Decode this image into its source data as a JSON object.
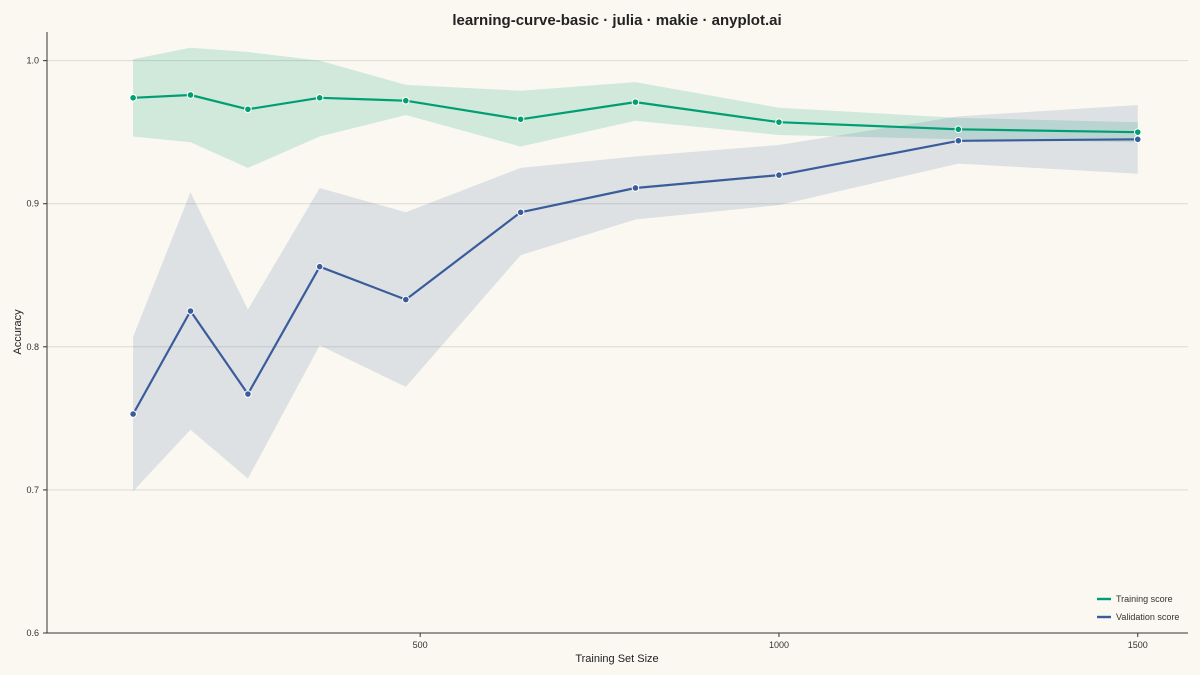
{
  "chart_data": {
    "type": "line",
    "title": "learning-curve-basic · julia · makie · anyplot.ai",
    "xlabel": "Training Set Size",
    "ylabel": "Accuracy",
    "xlim": [
      -20,
      1570
    ],
    "ylim": [
      0.6,
      1.02
    ],
    "xticks": [
      500,
      1000,
      1500
    ],
    "yticks": [
      0.6,
      0.7,
      0.8,
      0.9,
      1.0
    ],
    "xtick_labels": [
      "500",
      "1000",
      "1500"
    ],
    "ytick_labels": [
      "0.6",
      "0.7",
      "0.8",
      "0.9",
      "1.0"
    ],
    "grid": "horizontal",
    "legend_position": "bottom-right",
    "x": [
      100,
      180,
      260,
      360,
      480,
      640,
      800,
      1000,
      1250,
      1500
    ],
    "series": [
      {
        "name": "Training score",
        "color": "#009E73",
        "values": [
          0.974,
          0.976,
          0.966,
          0.974,
          0.972,
          0.959,
          0.971,
          0.957,
          0.952,
          0.95
        ],
        "upper": [
          1.001,
          1.009,
          1.006,
          1.0,
          0.983,
          0.979,
          0.985,
          0.967,
          0.96,
          0.957
        ],
        "lower": [
          0.947,
          0.943,
          0.925,
          0.947,
          0.962,
          0.94,
          0.958,
          0.948,
          0.945,
          0.943
        ]
      },
      {
        "name": "Validation score",
        "color": "#3A5C9B",
        "values": [
          0.753,
          0.825,
          0.767,
          0.856,
          0.833,
          0.894,
          0.911,
          0.92,
          0.944,
          0.945
        ],
        "upper": [
          0.807,
          0.908,
          0.826,
          0.911,
          0.894,
          0.925,
          0.933,
          0.941,
          0.961,
          0.969
        ],
        "lower": [
          0.699,
          0.742,
          0.708,
          0.801,
          0.772,
          0.864,
          0.889,
          0.899,
          0.928,
          0.921
        ]
      }
    ]
  }
}
